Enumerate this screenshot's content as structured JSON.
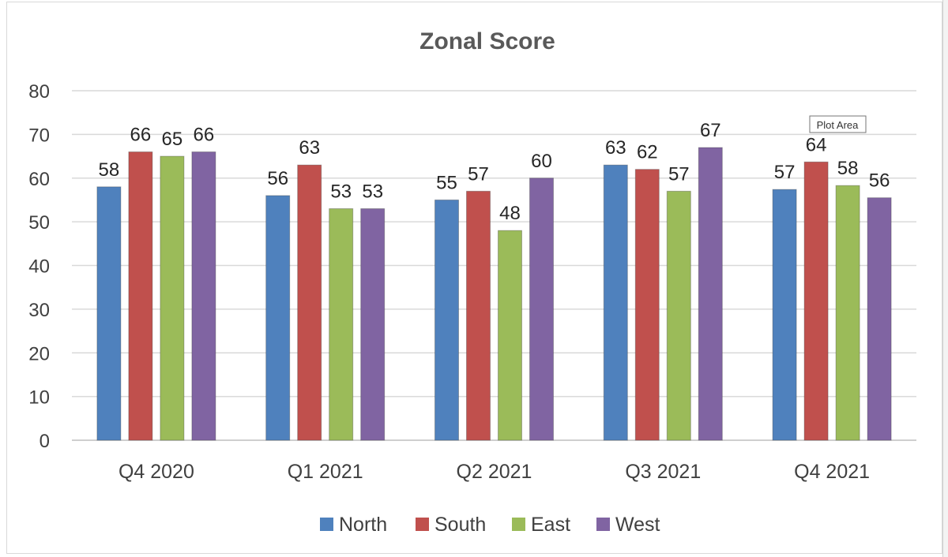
{
  "tooltip": "Plot Area",
  "chart_data": {
    "type": "bar",
    "title": "Zonal Score",
    "xlabel": "",
    "ylabel": "",
    "ylim": [
      0,
      80
    ],
    "yticks": [
      "0",
      "10",
      "20",
      "30",
      "40",
      "50",
      "60",
      "70",
      "80"
    ],
    "grid": true,
    "legend_position": "bottom",
    "categories": [
      "Q4 2020",
      "Q1 2021",
      "Q2 2021",
      "Q3 2021",
      "Q4 2021"
    ],
    "series": [
      {
        "name": "North",
        "color": "#4f81bd",
        "values": [
          58,
          56,
          55,
          63,
          57.4
        ],
        "labels": [
          "58",
          "56",
          "55",
          "63",
          "57"
        ]
      },
      {
        "name": "South",
        "color": "#c0504d",
        "values": [
          66,
          63,
          57,
          62,
          63.7
        ],
        "labels": [
          "66",
          "63",
          "57",
          "62",
          "64"
        ]
      },
      {
        "name": "East",
        "color": "#9bbb59",
        "values": [
          65,
          53,
          48,
          57,
          58.3
        ],
        "labels": [
          "65",
          "53",
          "48",
          "57",
          "58"
        ]
      },
      {
        "name": "West",
        "color": "#8064a2",
        "values": [
          66,
          53,
          60,
          67,
          55.5
        ],
        "labels": [
          "66",
          "53",
          "60",
          "67",
          "56"
        ]
      }
    ]
  }
}
